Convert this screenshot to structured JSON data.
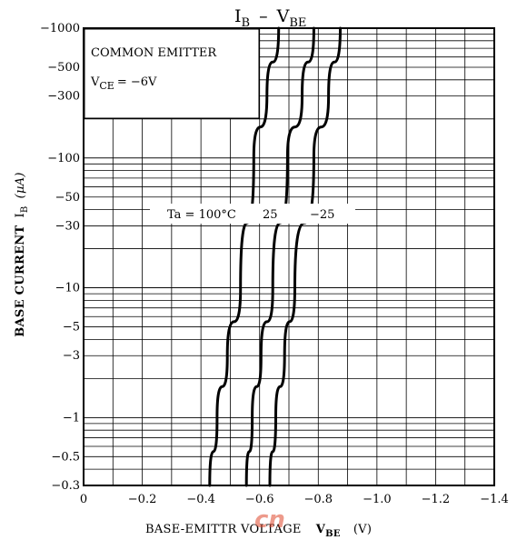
{
  "chart_data": {
    "type": "line",
    "title_main": "I",
    "title_main_sub": "B",
    "title_dash": "–",
    "title_second": "V",
    "title_second_sub": "BE",
    "xlabel": "BASE-EMITTR VOLTAGE",
    "xlabel_symbol": "V",
    "xlabel_symbol_sub": "BE",
    "xlabel_unit": "(V)",
    "ylabel": "BASE CURRENT",
    "ylabel_symbol": "I",
    "ylabel_symbol_sub": "B",
    "ylabel_unit": "(µA)",
    "x_scale": "linear",
    "y_scale": "log",
    "xlim": [
      0,
      -1.4
    ],
    "ylim": [
      -0.3,
      -1000
    ],
    "grid": true,
    "x_ticks": [
      {
        "v": 0,
        "label": "0"
      },
      {
        "v": -0.2,
        "label": "−0.2"
      },
      {
        "v": -0.4,
        "label": "−0.4"
      },
      {
        "v": -0.6,
        "label": "−0.6"
      },
      {
        "v": -0.8,
        "label": "−0.8"
      },
      {
        "v": -1.0,
        "label": "−1.0"
      },
      {
        "v": -1.2,
        "label": "−1.2"
      },
      {
        "v": -1.4,
        "label": "−1.4"
      }
    ],
    "y_ticks": [
      {
        "v": -0.3,
        "label": "−0.3"
      },
      {
        "v": -0.5,
        "label": "−0.5"
      },
      {
        "v": -1,
        "label": "−1"
      },
      {
        "v": -3,
        "label": "−3"
      },
      {
        "v": -5,
        "label": "−5"
      },
      {
        "v": -10,
        "label": "−10"
      },
      {
        "v": -30,
        "label": "−30"
      },
      {
        "v": -50,
        "label": "−50"
      },
      {
        "v": -100,
        "label": "−100"
      },
      {
        "v": -300,
        "label": "−300"
      },
      {
        "v": -500,
        "label": "−500"
      },
      {
        "v": -1000,
        "label": "−1000"
      }
    ],
    "legend_box": {
      "line1": "COMMON EMITTER",
      "line2_symbol": "V",
      "line2_sub": "CE",
      "line2_value": "= −6V"
    },
    "annotation": "Ta = 100°C",
    "series": [
      {
        "name": "100°C",
        "label": "",
        "x": [
          -0.43,
          -0.455,
          -0.49,
          -0.535,
          -0.58,
          -0.625,
          -0.665
        ],
        "y": [
          -0.3,
          -1,
          -3,
          -10,
          -100,
          -300,
          -1000
        ]
      },
      {
        "name": "25",
        "label": "25",
        "x": [
          -0.555,
          -0.575,
          -0.605,
          -0.645,
          -0.695,
          -0.745,
          -0.785
        ],
        "y": [
          -0.3,
          -1,
          -3,
          -10,
          -100,
          -300,
          -1000
        ]
      },
      {
        "name": "−25",
        "label": "−25",
        "x": [
          -0.635,
          -0.655,
          -0.685,
          -0.72,
          -0.785,
          -0.835,
          -0.875
        ],
        "y": [
          -0.3,
          -1,
          -3,
          -10,
          -100,
          -300,
          -1000
        ]
      }
    ],
    "watermark": "cn"
  }
}
